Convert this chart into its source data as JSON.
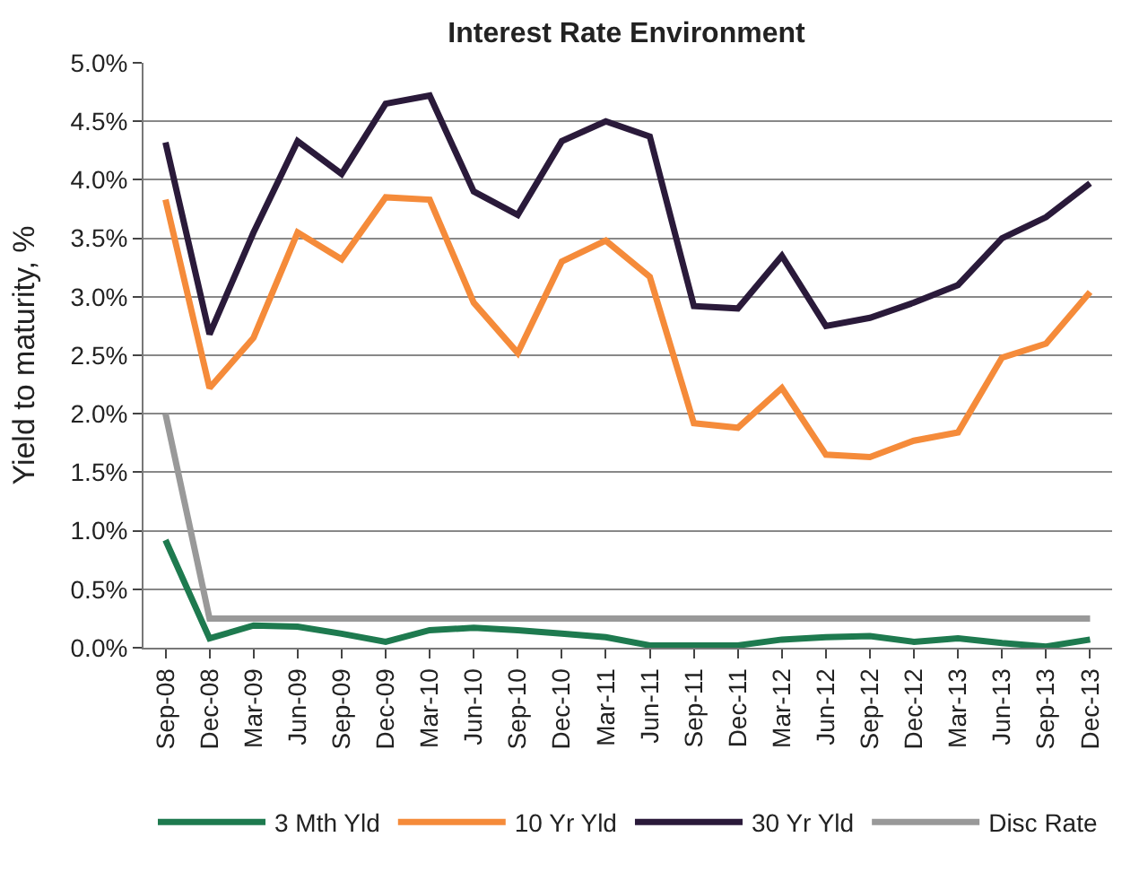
{
  "chart_data": {
    "type": "line",
    "title": "Interest Rate Environment",
    "ylabel": "Yield to maturity, %",
    "categories": [
      "Sep-08",
      "Dec-08",
      "Mar-09",
      "Jun-09",
      "Sep-09",
      "Dec-09",
      "Mar-10",
      "Jun-10",
      "Sep-10",
      "Dec-10",
      "Mar-11",
      "Jun-11",
      "Sep-11",
      "Dec-11",
      "Mar-12",
      "Jun-12",
      "Sep-12",
      "Dec-12",
      "Mar-13",
      "Jun-13",
      "Sep-13",
      "Dec-13"
    ],
    "series": [
      {
        "name": "3 Mth Yld",
        "color": "#1e7a4f",
        "values": [
          0.92,
          0.08,
          0.19,
          0.18,
          0.12,
          0.05,
          0.15,
          0.17,
          0.15,
          0.12,
          0.09,
          0.02,
          0.02,
          0.02,
          0.07,
          0.09,
          0.1,
          0.05,
          0.08,
          0.04,
          0.01,
          0.07
        ]
      },
      {
        "name": "10 Yr Yld",
        "color": "#f58b3a",
        "values": [
          3.83,
          2.22,
          2.65,
          3.55,
          3.32,
          3.85,
          3.83,
          2.95,
          2.52,
          3.3,
          3.48,
          3.17,
          1.92,
          1.88,
          2.22,
          1.65,
          1.63,
          1.77,
          1.84,
          2.48,
          2.6,
          3.04
        ]
      },
      {
        "name": "30 Yr Yld",
        "color": "#2a1a3a",
        "values": [
          4.32,
          2.68,
          3.55,
          4.33,
          4.05,
          4.65,
          4.72,
          3.9,
          3.7,
          4.33,
          4.5,
          4.37,
          2.92,
          2.9,
          3.35,
          2.75,
          2.82,
          2.95,
          3.1,
          3.5,
          3.68,
          3.97
        ]
      },
      {
        "name": "Disc Rate",
        "color": "#999999",
        "values": [
          2.0,
          0.25,
          0.25,
          0.25,
          0.25,
          0.25,
          0.25,
          0.25,
          0.25,
          0.25,
          0.25,
          0.25,
          0.25,
          0.25,
          0.25,
          0.25,
          0.25,
          0.25,
          0.25,
          0.25,
          0.25,
          0.25
        ]
      }
    ],
    "ylim": [
      0,
      5
    ],
    "yticks": [
      {
        "value": 0,
        "label": "0.0%"
      },
      {
        "value": 0.5,
        "label": "0.5%"
      },
      {
        "value": 1,
        "label": "1.0%"
      },
      {
        "value": 1.5,
        "label": "1.5%"
      },
      {
        "value": 2,
        "label": "2.0%"
      },
      {
        "value": 2.5,
        "label": "2.5%"
      },
      {
        "value": 3,
        "label": "3.0%"
      },
      {
        "value": 3.5,
        "label": "3.5%"
      },
      {
        "value": 4,
        "label": "4.0%"
      },
      {
        "value": 4.5,
        "label": "4.5%"
      },
      {
        "value": 5,
        "label": "5.0%"
      }
    ],
    "grid": "y",
    "legend": "bottom",
    "marker": "none",
    "line_style": "solid"
  }
}
